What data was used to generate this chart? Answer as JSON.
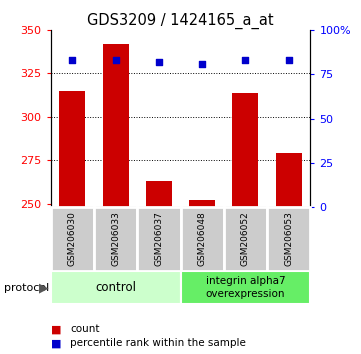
{
  "title": "GDS3209 / 1424165_a_at",
  "samples": [
    "GSM206030",
    "GSM206033",
    "GSM206037",
    "GSM206048",
    "GSM206052",
    "GSM206053"
  ],
  "counts": [
    315,
    342,
    263,
    252,
    314,
    279
  ],
  "percentile_ranks": [
    83,
    83,
    82,
    81,
    83,
    83
  ],
  "ylim_left": [
    248,
    350
  ],
  "ylim_right": [
    0,
    100
  ],
  "yticks_left": [
    250,
    275,
    300,
    325,
    350
  ],
  "ytick_labels_left": [
    "250",
    "275",
    "300",
    "325",
    "350"
  ],
  "yticks_right": [
    0,
    25,
    50,
    75,
    100
  ],
  "ytick_labels_right": [
    "0",
    "25",
    "50",
    "75",
    "100%"
  ],
  "grid_values": [
    275,
    300,
    325
  ],
  "bar_color": "#cc0000",
  "dot_color": "#0000cc",
  "bar_width": 0.6,
  "ctrl_color_light": "#ccffcc",
  "ctrl_color_dark": "#66ee66",
  "sample_cell_color": "#cccccc",
  "legend_bar_label": "count",
  "legend_dot_label": "percentile rank within the sample",
  "protocol_label": "protocol"
}
